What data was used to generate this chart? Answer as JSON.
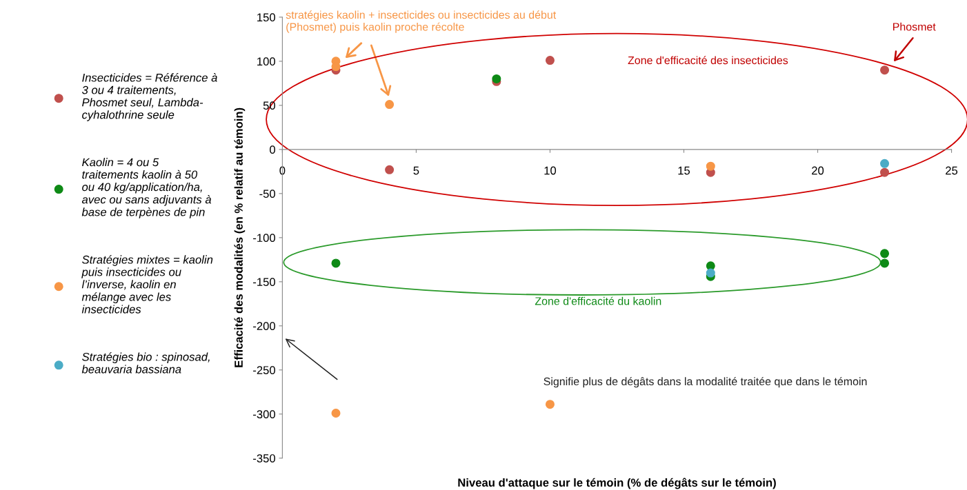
{
  "chart_data": {
    "type": "scatter",
    "xlabel": "Niveau d'attaque sur le témoin (% de dégâts sur le témoin)",
    "ylabel": "Efficacité des modalités (en % relatif au témoin)",
    "xlim": [
      0,
      25
    ],
    "xticks": [
      0,
      5,
      10,
      15,
      20,
      25
    ],
    "ylim": [
      -350,
      150
    ],
    "yticks": [
      -350,
      -300,
      -250,
      -200,
      -150,
      -100,
      -50,
      0,
      50,
      100,
      150
    ],
    "grid": false,
    "legend": "left",
    "marker": "circle",
    "series": [
      {
        "name": "Insecticides = Référence à\n3 ou 4 traitements,\nPhosmet seul, Lambda-\ncyhalothrine seule",
        "color": "#c0504d",
        "x": [
          2,
          4,
          8,
          10,
          16,
          22.5,
          22.5
        ],
        "values": [
          90,
          -23,
          77,
          101,
          -26,
          90,
          -26
        ]
      },
      {
        "name": "Kaolin = 4 ou 5\ntraitements kaolin à 50\nou 40 kg/application/ha,\navec ou sans adjuvants à\nbase de terpènes de pin",
        "color": "#0e8a16",
        "x": [
          8,
          2,
          16,
          16,
          22.5,
          22.5
        ],
        "values": [
          80,
          -129,
          -132,
          -144,
          -118,
          -129
        ]
      },
      {
        "name": "Stratégies mixtes = kaolin\npuis insecticides ou\nl’inverse, kaolin en\nmélange avec les\ninsecticides",
        "color": "#f79646",
        "x": [
          2,
          2,
          4,
          16,
          2,
          10
        ],
        "values": [
          100,
          94,
          51,
          -19,
          -299,
          -289
        ]
      },
      {
        "name": "Stratégies bio : spinosad,\nbeauvaria bassiana",
        "color": "#4bacc6",
        "x": [
          22.5,
          16
        ],
        "values": [
          -16,
          -140
        ]
      }
    ],
    "annotations": [
      {
        "text": "stratégies kaolin + insecticides ou insecticides au début\n(Phosmet) puis kaolin proche récolte",
        "x": 2,
        "y": 100
      },
      "Phosmet",
      "Zone d'efficacité des insecticides",
      "Zone d'efficacité du kaolin",
      "Signifie plus de dégâts dans la modalité traitée que dans le témoin"
    ]
  }
}
